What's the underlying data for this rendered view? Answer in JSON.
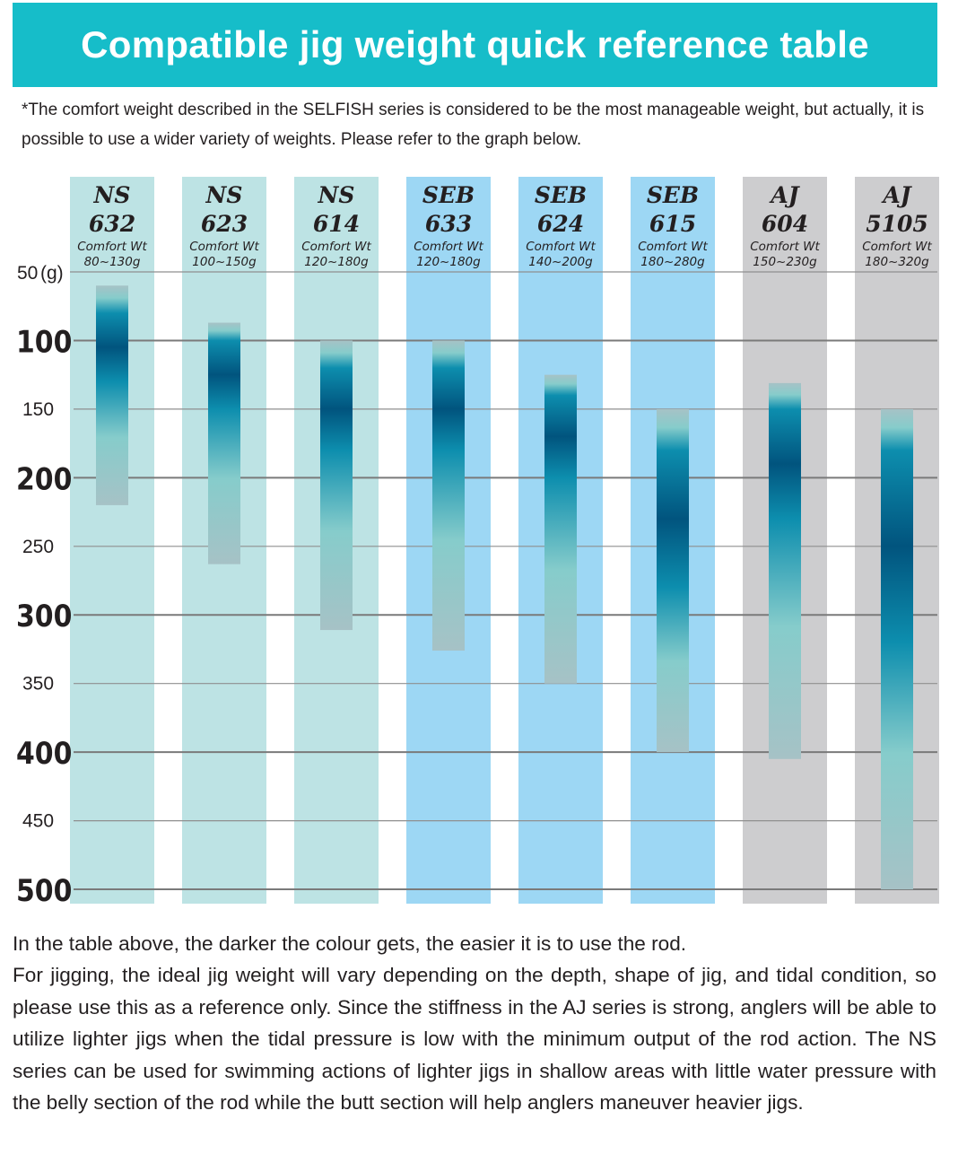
{
  "header": {
    "title": "Compatible jig weight quick reference table",
    "note": "*The comfort weight described in the SELFISH series is considered to be the most manageable weight, but actually, it is possible to use a wider variety of weights. Please refer to the graph below."
  },
  "chart_data": {
    "type": "bar",
    "orientation": "vertical-range",
    "ylabel": "(g)",
    "ylim": [
      50,
      500
    ],
    "y_ticks": [
      {
        "value": 50,
        "label": "50"
      },
      {
        "value": 100,
        "label": "100"
      },
      {
        "value": 150,
        "label": "150"
      },
      {
        "value": 200,
        "label": "200"
      },
      {
        "value": 250,
        "label": "250"
      },
      {
        "value": 300,
        "label": "300"
      },
      {
        "value": 350,
        "label": "350"
      },
      {
        "value": 400,
        "label": "400"
      },
      {
        "value": 450,
        "label": "450"
      },
      {
        "value": 500,
        "label": "500"
      }
    ],
    "comfort_prefix": "Comfort Wt",
    "series": [
      {
        "series_line": "NS",
        "model": "632",
        "comfort": "80~130g",
        "range": [
          60,
          220
        ],
        "comfort_range": [
          80,
          130
        ],
        "column_color": "#bde3e4"
      },
      {
        "series_line": "NS",
        "model": "623",
        "comfort": "100~150g",
        "range": [
          87,
          263
        ],
        "comfort_range": [
          100,
          150
        ],
        "column_color": "#bde3e4"
      },
      {
        "series_line": "NS",
        "model": "614",
        "comfort": "120~180g",
        "range": [
          100,
          311
        ],
        "comfort_range": [
          120,
          180
        ],
        "column_color": "#bde3e4"
      },
      {
        "series_line": "SEB",
        "model": "633",
        "comfort": "120~180g",
        "range": [
          100,
          326
        ],
        "comfort_range": [
          120,
          180
        ],
        "column_color": "#9dd7f4"
      },
      {
        "series_line": "SEB",
        "model": "624",
        "comfort": "140~200g",
        "range": [
          125,
          350
        ],
        "comfort_range": [
          140,
          200
        ],
        "column_color": "#9dd7f4"
      },
      {
        "series_line": "SEB",
        "model": "615",
        "comfort": "180~280g",
        "range": [
          150,
          400
        ],
        "comfort_range": [
          180,
          280
        ],
        "column_color": "#9dd7f4"
      },
      {
        "series_line": "AJ",
        "model": "604",
        "comfort": "150~230g",
        "range": [
          131,
          405
        ],
        "comfort_range": [
          150,
          230
        ],
        "column_color": "#cdcdcf"
      },
      {
        "series_line": "AJ",
        "model": "5105",
        "comfort": "180~320g",
        "range": [
          150,
          500
        ],
        "comfort_range": [
          180,
          320
        ],
        "column_color": "#cdcdcf"
      }
    ],
    "gradient_colors": {
      "light": "#a6c2c6",
      "mint": "#86cccb",
      "teal": "#0d8eae",
      "dark": "#01547e"
    }
  },
  "footer": {
    "line1": "In the table above, the darker the colour gets, the easier it is to use the rod.",
    "line2": "For jigging, the ideal jig weight will vary depending on the depth, shape of jig, and tidal condition, so please use this as a reference only. Since the stiffness in the AJ series is strong, anglers will be able to utilize lighter jigs when the tidal pressure is low with the minimum output of the rod action. The NS series can be used for swimming actions of lighter jigs in shallow areas with little water pressure with the belly section of the rod while the butt section will help anglers maneuver heavier jigs."
  }
}
